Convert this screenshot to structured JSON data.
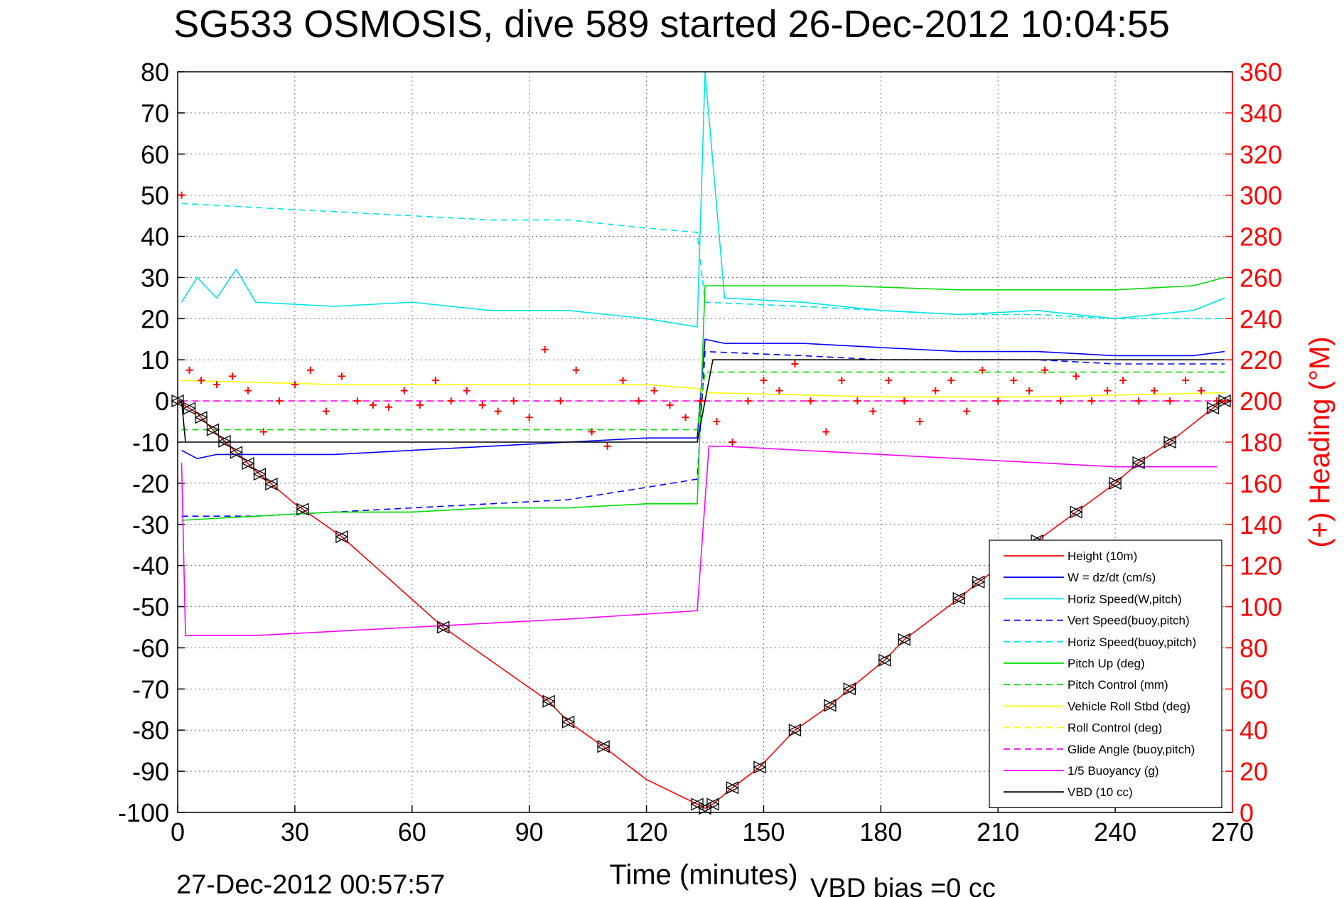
{
  "chart_data": {
    "type": "line",
    "title": "SG533 OSMOSIS, dive 589 started 26-Dec-2012 10:04:55",
    "xlabel": "Time (minutes)",
    "ylabel_right": "(+) Heading (°M)",
    "footer_left": "27-Dec-2012 00:57:57",
    "footer_right": "VBD bias =0 cc",
    "xlim": [
      0,
      270
    ],
    "ylim": [
      -100,
      80
    ],
    "ylim_right": [
      0,
      360
    ],
    "xticks": [
      0,
      30,
      60,
      90,
      120,
      150,
      180,
      210,
      240,
      270
    ],
    "yticks": [
      -100,
      -90,
      -80,
      -70,
      -60,
      -50,
      -40,
      -30,
      -20,
      -10,
      0,
      10,
      20,
      30,
      40,
      50,
      60,
      70,
      80
    ],
    "yticks_right": [
      0,
      20,
      40,
      60,
      80,
      100,
      120,
      140,
      160,
      180,
      200,
      220,
      240,
      260,
      280,
      300,
      320,
      340,
      360
    ],
    "grid": true,
    "legend_position": "lower-right",
    "series": [
      {
        "name": "Height (10m)",
        "color": "#ff0000",
        "style": "solid",
        "x": [
          0,
          5,
          10,
          20,
          30,
          42,
          68,
          95,
          100,
          109,
          120,
          133,
          135,
          137,
          142,
          149,
          158,
          167,
          172,
          181,
          186,
          200,
          205,
          220,
          230,
          240,
          246,
          254,
          262,
          266,
          268
        ],
        "y": [
          0,
          -3,
          -8,
          -17,
          -25,
          -33,
          -55,
          -73,
          -78,
          -84,
          -92,
          -98,
          -99,
          -98,
          -94,
          -89,
          -80,
          -74,
          -70,
          -63,
          -58,
          -48,
          -44,
          -34,
          -27,
          -20,
          -15,
          -10,
          -4,
          -1,
          0
        ]
      },
      {
        "name": "W = dz/dt (cm/s)",
        "color": "#0000ff",
        "style": "solid",
        "x": [
          1,
          5,
          10,
          20,
          40,
          60,
          80,
          100,
          120,
          133,
          135,
          140,
          160,
          180,
          200,
          220,
          240,
          260,
          268
        ],
        "y": [
          -12,
          -14,
          -13,
          -13,
          -13,
          -12,
          -11,
          -10,
          -9,
          -9,
          15,
          14,
          14,
          13,
          12,
          12,
          11,
          11,
          12
        ]
      },
      {
        "name": "Horiz Speed(W,pitch)",
        "color": "#00e5e5",
        "style": "solid",
        "x": [
          1,
          5,
          10,
          15,
          20,
          40,
          60,
          80,
          100,
          120,
          133,
          135,
          140,
          160,
          180,
          200,
          220,
          240,
          260,
          268
        ],
        "y": [
          24,
          30,
          25,
          32,
          24,
          23,
          24,
          22,
          22,
          20,
          18,
          80,
          25,
          24,
          22,
          21,
          22,
          20,
          22,
          25
        ]
      },
      {
        "name": "Vert Speed(buoy,pitch)",
        "color": "#0000ff",
        "style": "dash",
        "x": [
          1,
          20,
          40,
          60,
          80,
          100,
          120,
          133,
          135,
          160,
          180,
          200,
          220,
          240,
          260,
          268
        ],
        "y": [
          -28,
          -28,
          -27,
          -26,
          -25,
          -24,
          -21,
          -19,
          12,
          11,
          10,
          10,
          10,
          9,
          9,
          9
        ]
      },
      {
        "name": "Horiz Speed(buoy,pitch)",
        "color": "#00e5e5",
        "style": "dash",
        "x": [
          1,
          20,
          40,
          60,
          80,
          100,
          120,
          133,
          135,
          160,
          180,
          200,
          220,
          240,
          260,
          268
        ],
        "y": [
          48,
          47,
          46,
          45,
          44,
          44,
          42,
          41,
          24,
          23,
          22,
          21,
          21,
          20,
          20,
          20
        ]
      },
      {
        "name": "Pitch Up (deg)",
        "color": "#00dd00",
        "style": "solid",
        "x": [
          1,
          20,
          40,
          60,
          80,
          100,
          120,
          133,
          135,
          150,
          170,
          200,
          220,
          240,
          260,
          268
        ],
        "y": [
          -29,
          -28,
          -27,
          -27,
          -26,
          -26,
          -25,
          -25,
          28,
          28,
          28,
          27,
          27,
          27,
          28,
          30
        ]
      },
      {
        "name": "Pitch Control (mm)",
        "color": "#00dd00",
        "style": "dash",
        "x": [
          1,
          133,
          135,
          268
        ],
        "y": [
          -7,
          -7,
          7,
          7
        ]
      },
      {
        "name": "Vehicle Roll Stbd (deg)",
        "color": "#ffff00",
        "style": "solid",
        "x": [
          1,
          40,
          80,
          120,
          133,
          135,
          180,
          220,
          268
        ],
        "y": [
          5,
          4,
          4,
          4,
          3,
          2,
          1,
          1,
          2
        ]
      },
      {
        "name": "Roll Control (deg)",
        "color": "#ffff00",
        "style": "dash",
        "x": [
          1,
          133,
          135,
          268
        ],
        "y": [
          0,
          0,
          0,
          0
        ]
      },
      {
        "name": "Glide Angle (buoy,pitch)",
        "color": "#ff00ff",
        "style": "dash",
        "x": [
          1,
          268
        ],
        "y": [
          0,
          0
        ]
      },
      {
        "name": "1/5 Buoyancy (g)",
        "color": "#ff00ff",
        "style": "solid",
        "x": [
          1,
          2,
          20,
          60,
          100,
          133,
          136,
          140,
          200,
          240,
          266
        ],
        "y": [
          -15,
          -57,
          -57,
          -55,
          -53,
          -51,
          -11,
          -11,
          -14,
          -16,
          -16
        ]
      },
      {
        "name": "VBD (10 cc)",
        "color": "#000000",
        "style": "solid",
        "x": [
          1,
          2,
          133,
          137,
          268
        ],
        "y": [
          0,
          -10,
          -10,
          10,
          10
        ]
      }
    ],
    "heading_axis": "right",
    "heading_color": "#ff0000",
    "heading_marker": "+",
    "heading_x": [
      1,
      3,
      6,
      10,
      14,
      18,
      22,
      26,
      30,
      34,
      38,
      42,
      46,
      50,
      54,
      58,
      62,
      66,
      70,
      74,
      78,
      82,
      86,
      90,
      94,
      98,
      102,
      106,
      110,
      114,
      118,
      122,
      126,
      130,
      134,
      138,
      142,
      146,
      150,
      154,
      158,
      162,
      166,
      170,
      174,
      178,
      182,
      186,
      190,
      194,
      198,
      202,
      206,
      210,
      214,
      218,
      222,
      226,
      230,
      234,
      238,
      242,
      246,
      250,
      254,
      258,
      262,
      266,
      268
    ],
    "heading_y": [
      300,
      215,
      210,
      208,
      212,
      205,
      185,
      200,
      208,
      215,
      195,
      212,
      200,
      198,
      197,
      205,
      198,
      210,
      200,
      205,
      198,
      195,
      200,
      192,
      225,
      200,
      215,
      185,
      178,
      210,
      200,
      205,
      198,
      192,
      200,
      190,
      180,
      200,
      210,
      205,
      218,
      200,
      185,
      210,
      200,
      195,
      210,
      200,
      190,
      205,
      210,
      195,
      215,
      200,
      210,
      205,
      215,
      200,
      212,
      200,
      205,
      210,
      200,
      205,
      200,
      210,
      205,
      200,
      200
    ],
    "buoyancy_markers_x": [
      0,
      3,
      6,
      9,
      12,
      15,
      18,
      21,
      24,
      32,
      42,
      68,
      95,
      100,
      109,
      133,
      135,
      137,
      142,
      149,
      158,
      167,
      172,
      181,
      186,
      200,
      205,
      220,
      230,
      240,
      246,
      254,
      265,
      268
    ]
  }
}
